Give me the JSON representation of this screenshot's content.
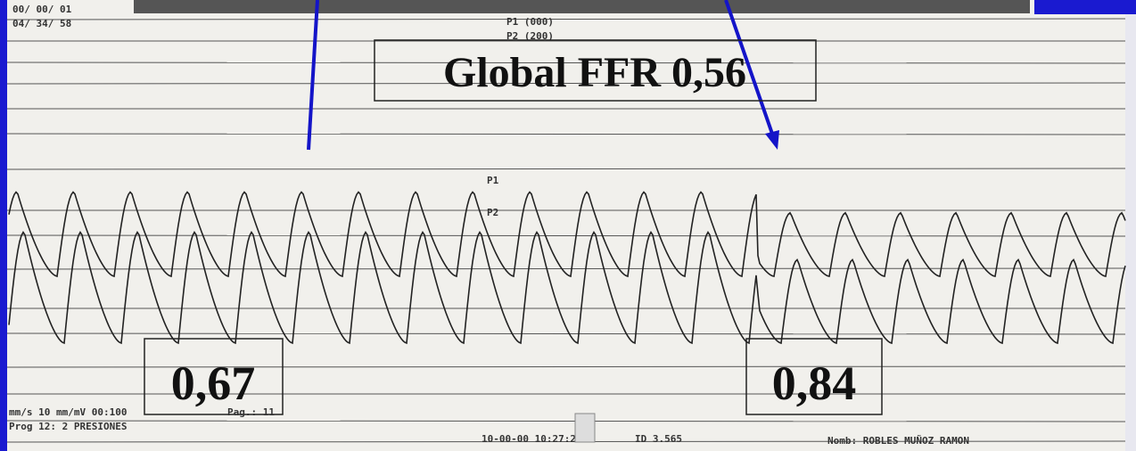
{
  "header": {
    "date_line_1": "00/ 00/ 01",
    "date_line_2": "04/ 34/ 58",
    "channel_1": "P1 (000)",
    "channel_2": "P2 (200)"
  },
  "trace_labels": {
    "p1": "P1",
    "p2": "P2"
  },
  "boxes": {
    "global": "Global FFR 0,56",
    "left": "0,67",
    "right": "0,84"
  },
  "footer": {
    "scale": "mm/s 10 mm/mV 00:100",
    "page": "Pag.: 11",
    "program": "Prog 12: 2 PRESIONES",
    "timestamp": "10-00-00 10:27:2",
    "id": "ID 3.565",
    "name": "Nomb: ROBLES MUÑOZ RAMON"
  }
}
